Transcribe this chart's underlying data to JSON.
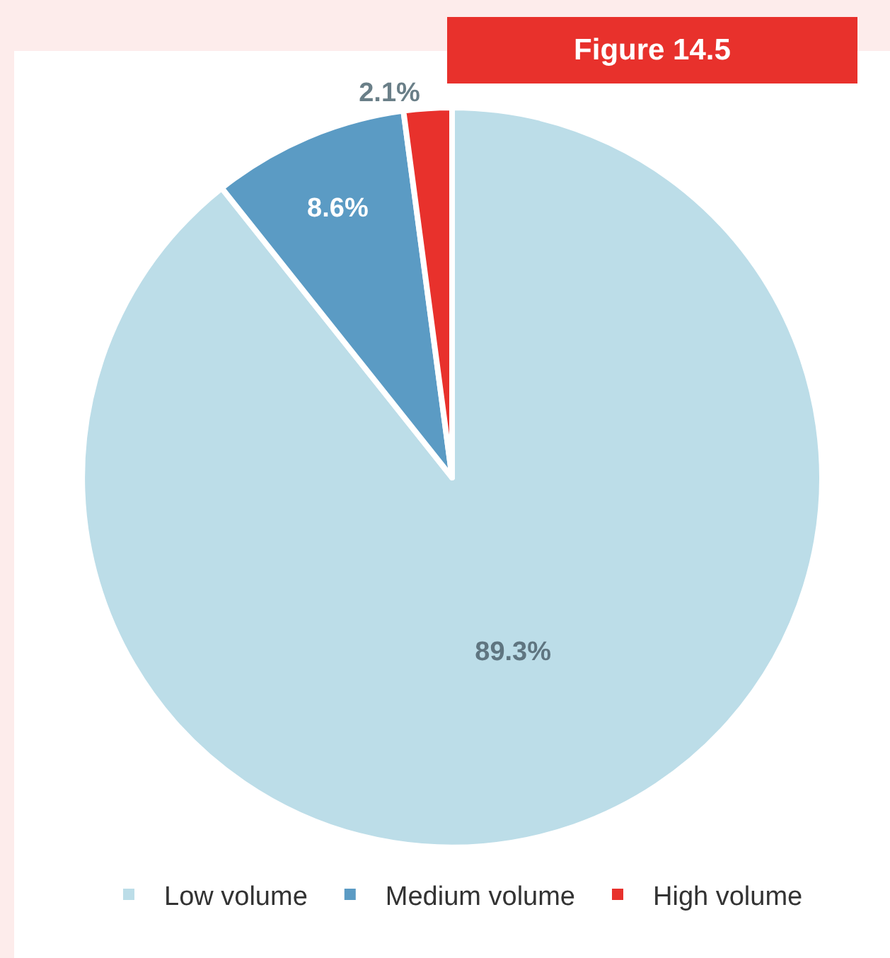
{
  "chart_data": {
    "type": "pie",
    "title": "Figure 14.5",
    "categories": [
      "Low volume",
      "Medium volume",
      "High volume"
    ],
    "values": [
      89.3,
      8.6,
      2.1
    ],
    "colors": [
      "#bcdde8",
      "#5b9bc4",
      "#e8312c"
    ],
    "value_labels": [
      "89.3%",
      "8.6%",
      "2.1%"
    ],
    "legend": "bottom"
  }
}
